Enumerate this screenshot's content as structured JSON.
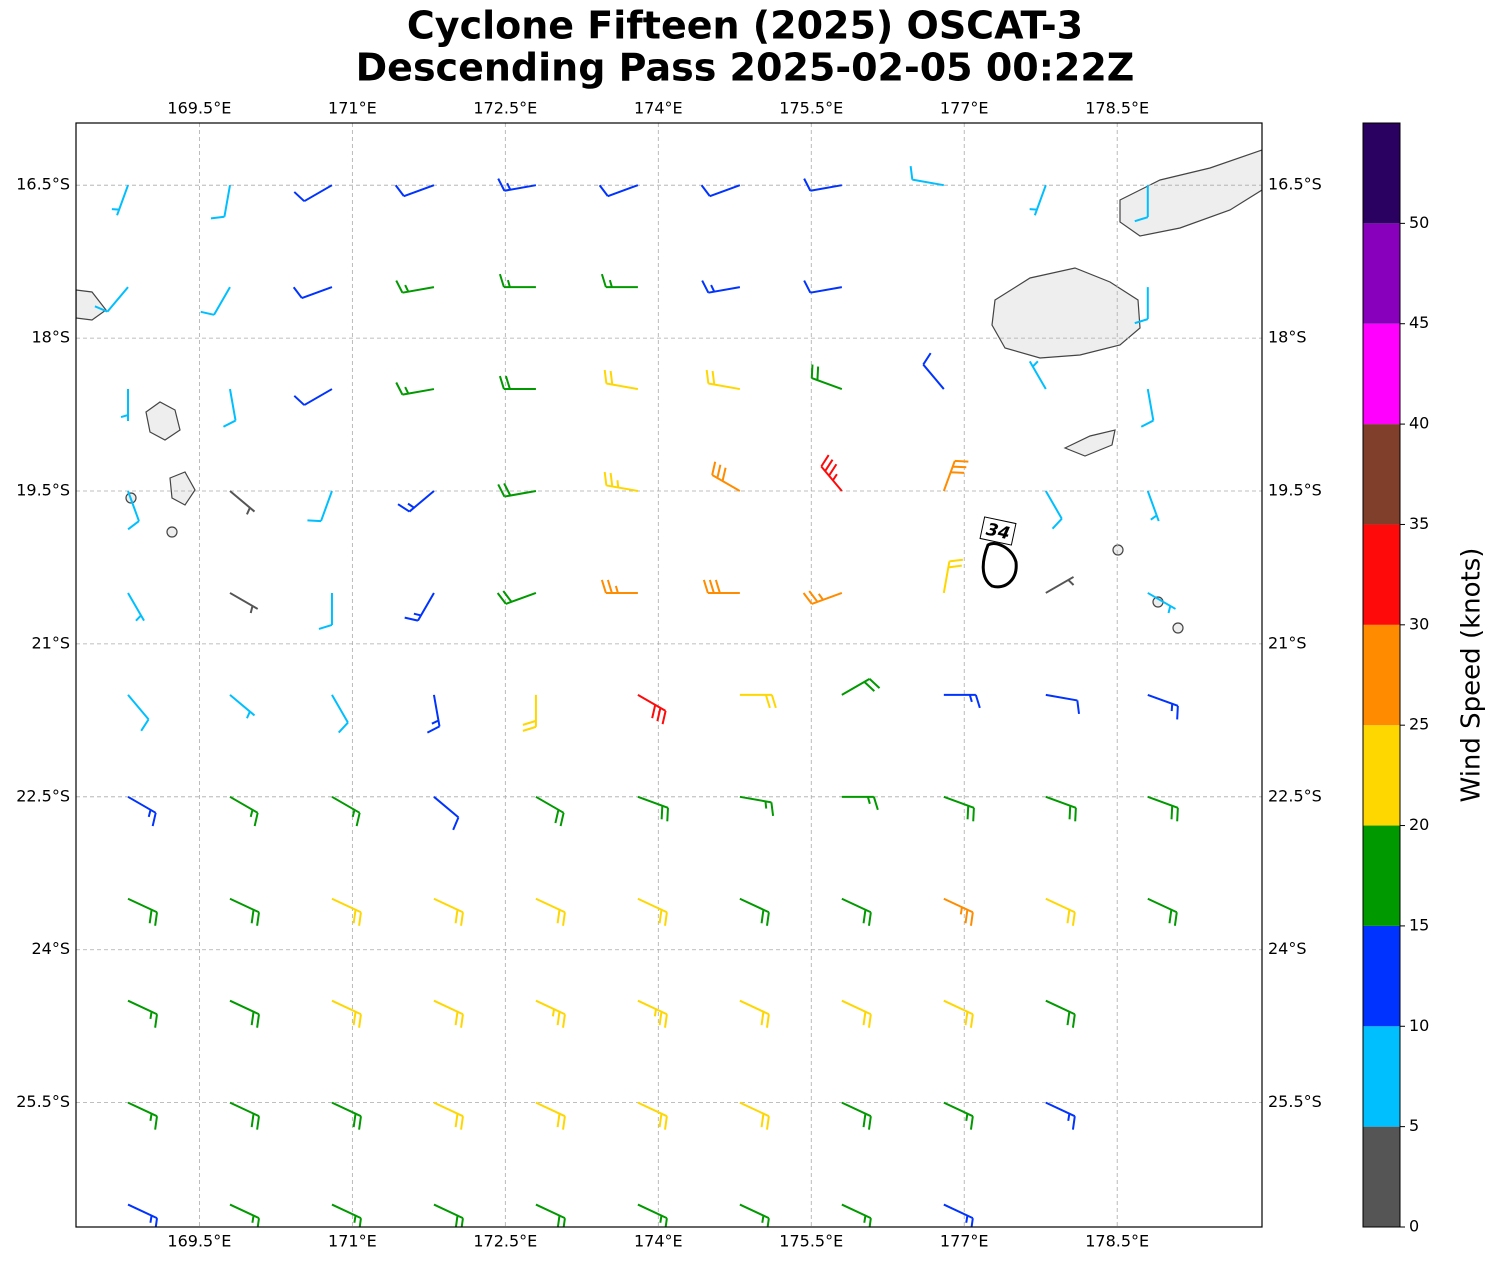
{
  "chart_data": {
    "type": "barbs",
    "title": "Cyclone Fifteen (2025) OSCAT-3",
    "subtitle": "Descending Pass 2025-02-05 00:22Z",
    "contour_label": "34",
    "colorbar_label": "Wind Speed (knots)",
    "xlim": [
      168.29,
      179.92
    ],
    "ylim": [
      -26.72,
      -15.89
    ],
    "xticks": [
      {
        "value": 169.5,
        "label": "169.5°E"
      },
      {
        "value": 171,
        "label": "171°E"
      },
      {
        "value": 172.5,
        "label": "172.5°E"
      },
      {
        "value": 174,
        "label": "174°E"
      },
      {
        "value": 175.5,
        "label": "175.5°E"
      },
      {
        "value": 177,
        "label": "177°E"
      },
      {
        "value": 178.5,
        "label": "178.5°E"
      }
    ],
    "yticks": [
      {
        "value": -16.5,
        "label": "16.5°S"
      },
      {
        "value": -18,
        "label": "18°S"
      },
      {
        "value": -19.5,
        "label": "19.5°S"
      },
      {
        "value": -21,
        "label": "21°S"
      },
      {
        "value": -22.5,
        "label": "22.5°S"
      },
      {
        "value": -24,
        "label": "24°S"
      },
      {
        "value": -25.5,
        "label": "25.5°S"
      }
    ],
    "grid": true,
    "colorbar_bounds": [
      0,
      5,
      10,
      15,
      20,
      25,
      30,
      35,
      40,
      45,
      50,
      55
    ],
    "colorbar_ticks": [
      0,
      5,
      10,
      15,
      20,
      25,
      30,
      35,
      40,
      45,
      50
    ],
    "colors": [
      "#555555",
      "#00bfff",
      "#0033ff",
      "#009900",
      "#ffd700",
      "#ff8c00",
      "#ff0a0a",
      "#7f3f2a",
      "#ff00ff",
      "#8800bb",
      "#2a0060"
    ],
    "lons": [
      168.8,
      169.8,
      170.8,
      171.8,
      172.8,
      173.8,
      174.8,
      175.8,
      176.8,
      177.8,
      178.8
    ],
    "lats": [
      -16.5,
      -17.5,
      -18.5,
      -19.5,
      -20.5,
      -21.5,
      -22.5,
      -23.5,
      -24.5,
      -25.5,
      -26.5
    ],
    "speed": [
      [
        7,
        8,
        12,
        12,
        13,
        12,
        12,
        11,
        9,
        7,
        8
      ],
      [
        8,
        9,
        12,
        16,
        17,
        16,
        14,
        12,
        null,
        null,
        8
      ],
      [
        7,
        8,
        12,
        16,
        19,
        22,
        22,
        19,
        12,
        7,
        9
      ],
      [
        8,
        4,
        9,
        14,
        19,
        23,
        29,
        33,
        28,
        8,
        7
      ],
      [
        7,
        3,
        8,
        13,
        18,
        25,
        28,
        26,
        22,
        4,
        7
      ],
      [
        8,
        6,
        9,
        13,
        22,
        32,
        22,
        18,
        13,
        11,
        14
      ],
      [
        14,
        17,
        15,
        12,
        19,
        18,
        17,
        15,
        18,
        19,
        18
      ],
      [
        18,
        19,
        21,
        22,
        22,
        20,
        19,
        19,
        25,
        21,
        19
      ],
      [
        17,
        18,
        20,
        22,
        23,
        23,
        22,
        21,
        20,
        19,
        null
      ],
      [
        17,
        18,
        18,
        21,
        22,
        22,
        21,
        19,
        17,
        14,
        null
      ],
      [
        13,
        17,
        17,
        18,
        18,
        17,
        17,
        15,
        14,
        null,
        null
      ]
    ],
    "direction": [
      [
        200,
        190,
        240,
        250,
        260,
        250,
        250,
        260,
        280,
        200,
        180
      ],
      [
        220,
        210,
        250,
        260,
        270,
        270,
        260,
        260,
        null,
        null,
        180
      ],
      [
        180,
        170,
        240,
        260,
        270,
        280,
        280,
        290,
        320,
        330,
        170
      ],
      [
        160,
        130,
        200,
        230,
        260,
        280,
        300,
        320,
        20,
        150,
        160
      ],
      [
        150,
        120,
        180,
        210,
        250,
        270,
        270,
        250,
        10,
        60,
        120
      ],
      [
        140,
        130,
        150,
        170,
        180,
        120,
        90,
        60,
        90,
        100,
        110
      ],
      [
        120,
        120,
        120,
        130,
        120,
        110,
        100,
        90,
        110,
        110,
        110
      ],
      [
        115,
        115,
        115,
        115,
        115,
        115,
        115,
        115,
        115,
        115,
        115
      ],
      [
        115,
        115,
        115,
        115,
        115,
        115,
        115,
        115,
        115,
        115,
        null
      ],
      [
        115,
        115,
        115,
        115,
        115,
        115,
        115,
        115,
        115,
        115,
        null
      ],
      [
        115,
        115,
        115,
        115,
        115,
        115,
        115,
        115,
        115,
        null,
        null
      ]
    ]
  }
}
